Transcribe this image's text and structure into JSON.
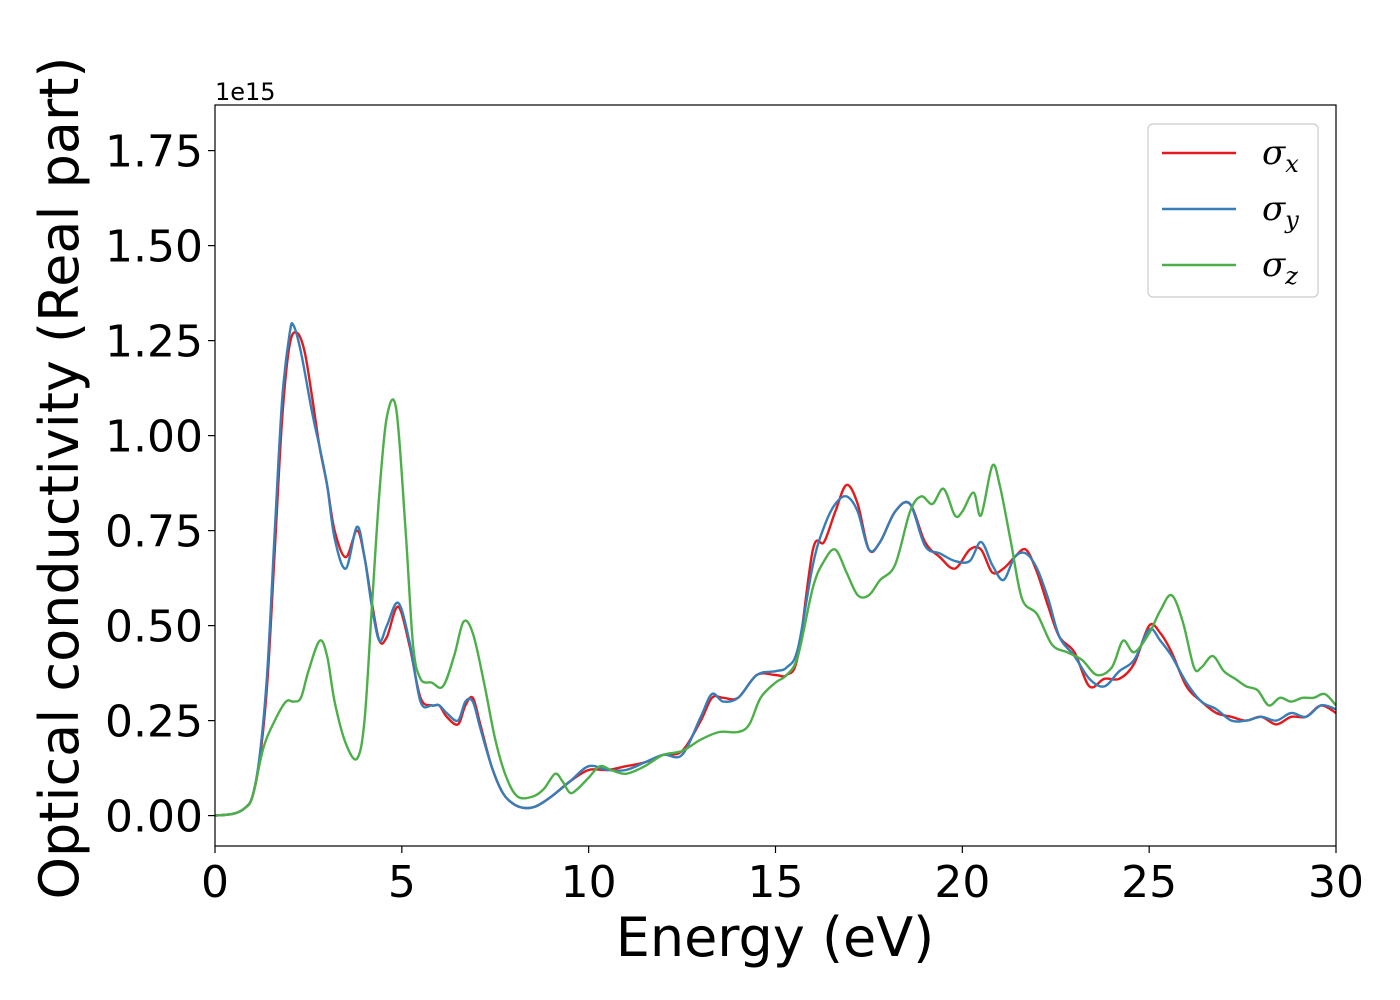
{
  "chart_data": {
    "type": "line",
    "xlabel": "Energy (eV)",
    "ylabel": "Optical conductivity (Real part)",
    "y_offset_text": "1e15",
    "y_scale_factor": 1000000000000000.0,
    "xlim": [
      0,
      30
    ],
    "ylim": [
      -0.08,
      1.87
    ],
    "x_ticks": [
      0,
      5,
      10,
      15,
      20,
      25,
      30
    ],
    "x_tick_labels": [
      "0",
      "5",
      "10",
      "15",
      "20",
      "25",
      "30"
    ],
    "y_ticks": [
      0,
      0.25,
      0.5,
      0.75,
      1.0,
      1.25,
      1.5,
      1.75
    ],
    "y_tick_labels": [
      "0.00",
      "0.25",
      "0.50",
      "0.75",
      "1.00",
      "1.25",
      "1.50",
      "1.75"
    ],
    "grid": false,
    "legend_position": "top-right",
    "series": [
      {
        "name": "σx",
        "base": "σ",
        "sub": "x",
        "color": "#e41a1c",
        "x": [
          0,
          0.5,
          0.8,
          1.0,
          1.2,
          1.4,
          1.6,
          1.8,
          2.0,
          2.2,
          2.4,
          2.6,
          2.8,
          3.0,
          3.2,
          3.5,
          3.8,
          4.0,
          4.2,
          4.4,
          4.6,
          4.9,
          5.2,
          5.5,
          5.8,
          6.0,
          6.2,
          6.5,
          6.7,
          6.9,
          7.1,
          7.4,
          7.7,
          8.0,
          8.3,
          8.6,
          9.0,
          9.5,
          10.0,
          10.5,
          11.0,
          11.5,
          12.0,
          12.5,
          13.0,
          13.3,
          13.6,
          14.0,
          14.5,
          15.0,
          15.3,
          15.6,
          16.0,
          16.3,
          16.6,
          16.9,
          17.2,
          17.5,
          17.8,
          18.2,
          18.6,
          19.0,
          19.4,
          19.8,
          20.2,
          20.5,
          20.8,
          21.1,
          21.4,
          21.7,
          22.0,
          22.3,
          22.6,
          23.0,
          23.4,
          23.8,
          24.2,
          24.6,
          25.0,
          25.3,
          25.6,
          26.0,
          26.4,
          26.8,
          27.2,
          27.6,
          28.0,
          28.4,
          28.8,
          29.2,
          29.6,
          30.0
        ],
        "y": [
          0.0,
          0.005,
          0.02,
          0.05,
          0.15,
          0.35,
          0.7,
          1.05,
          1.24,
          1.27,
          1.22,
          1.1,
          0.97,
          0.87,
          0.75,
          0.68,
          0.75,
          0.68,
          0.56,
          0.46,
          0.47,
          0.55,
          0.45,
          0.31,
          0.29,
          0.29,
          0.26,
          0.24,
          0.29,
          0.31,
          0.24,
          0.13,
          0.06,
          0.03,
          0.02,
          0.025,
          0.05,
          0.09,
          0.12,
          0.12,
          0.13,
          0.14,
          0.16,
          0.17,
          0.25,
          0.31,
          0.31,
          0.31,
          0.37,
          0.37,
          0.37,
          0.42,
          0.7,
          0.72,
          0.8,
          0.87,
          0.82,
          0.7,
          0.72,
          0.8,
          0.82,
          0.72,
          0.68,
          0.65,
          0.7,
          0.7,
          0.64,
          0.65,
          0.68,
          0.7,
          0.64,
          0.55,
          0.47,
          0.43,
          0.34,
          0.36,
          0.36,
          0.4,
          0.5,
          0.48,
          0.43,
          0.34,
          0.3,
          0.27,
          0.26,
          0.25,
          0.26,
          0.24,
          0.26,
          0.26,
          0.29,
          0.27
        ]
      },
      {
        "name": "σy",
        "base": "σ",
        "sub": "y",
        "color": "#377eb8",
        "x": [
          0,
          0.5,
          0.8,
          1.0,
          1.2,
          1.4,
          1.6,
          1.8,
          2.0,
          2.1,
          2.3,
          2.6,
          2.8,
          3.0,
          3.2,
          3.5,
          3.8,
          4.0,
          4.2,
          4.4,
          4.6,
          4.9,
          5.2,
          5.5,
          5.8,
          6.0,
          6.2,
          6.5,
          6.7,
          6.9,
          7.1,
          7.4,
          7.7,
          8.0,
          8.3,
          8.6,
          9.0,
          9.5,
          10.0,
          10.5,
          11.0,
          11.5,
          12.0,
          12.5,
          13.0,
          13.3,
          13.6,
          14.0,
          14.5,
          15.0,
          15.3,
          15.6,
          16.0,
          16.3,
          16.6,
          16.9,
          17.2,
          17.5,
          17.8,
          18.2,
          18.6,
          19.0,
          19.4,
          19.8,
          20.2,
          20.5,
          20.8,
          21.1,
          21.4,
          21.7,
          22.0,
          22.3,
          22.6,
          23.0,
          23.4,
          23.8,
          24.2,
          24.6,
          25.0,
          25.3,
          25.6,
          26.0,
          26.4,
          26.8,
          27.2,
          27.6,
          28.0,
          28.4,
          28.8,
          29.2,
          29.6,
          30.0
        ],
        "y": [
          0.0,
          0.005,
          0.02,
          0.05,
          0.16,
          0.38,
          0.75,
          1.1,
          1.27,
          1.29,
          1.22,
          1.06,
          0.97,
          0.87,
          0.73,
          0.65,
          0.76,
          0.68,
          0.55,
          0.46,
          0.5,
          0.56,
          0.46,
          0.3,
          0.29,
          0.29,
          0.27,
          0.25,
          0.3,
          0.3,
          0.23,
          0.13,
          0.06,
          0.03,
          0.02,
          0.025,
          0.05,
          0.09,
          0.13,
          0.12,
          0.12,
          0.14,
          0.16,
          0.16,
          0.26,
          0.32,
          0.3,
          0.31,
          0.37,
          0.38,
          0.39,
          0.44,
          0.66,
          0.76,
          0.82,
          0.84,
          0.8,
          0.7,
          0.72,
          0.8,
          0.82,
          0.71,
          0.69,
          0.67,
          0.67,
          0.72,
          0.66,
          0.62,
          0.68,
          0.69,
          0.65,
          0.57,
          0.47,
          0.42,
          0.36,
          0.34,
          0.38,
          0.41,
          0.49,
          0.46,
          0.42,
          0.35,
          0.3,
          0.28,
          0.25,
          0.25,
          0.26,
          0.25,
          0.27,
          0.26,
          0.29,
          0.28
        ]
      },
      {
        "name": "σz",
        "base": "σ",
        "sub": "z",
        "color": "#4daf4a",
        "x": [
          0,
          0.5,
          0.8,
          1.0,
          1.3,
          1.6,
          1.9,
          2.1,
          2.3,
          2.5,
          2.8,
          3.0,
          3.2,
          3.5,
          3.8,
          4.0,
          4.2,
          4.4,
          4.6,
          4.85,
          5.1,
          5.3,
          5.5,
          5.8,
          6.1,
          6.4,
          6.65,
          6.9,
          7.2,
          7.5,
          7.8,
          8.1,
          8.5,
          8.8,
          9.1,
          9.3,
          9.5,
          9.7,
          10.0,
          10.3,
          10.6,
          11.0,
          11.5,
          12.0,
          12.5,
          13.0,
          13.5,
          14.0,
          14.3,
          14.6,
          15.0,
          15.3,
          15.6,
          16.0,
          16.3,
          16.6,
          16.9,
          17.2,
          17.5,
          17.8,
          18.2,
          18.6,
          18.9,
          19.2,
          19.5,
          19.8,
          20.0,
          20.3,
          20.5,
          20.8,
          21.0,
          21.3,
          21.6,
          22.0,
          22.4,
          22.8,
          23.2,
          23.6,
          24.0,
          24.3,
          24.6,
          25.0,
          25.3,
          25.6,
          25.9,
          26.2,
          26.4,
          26.7,
          27.0,
          27.3,
          27.6,
          27.9,
          28.2,
          28.5,
          28.8,
          29.1,
          29.4,
          29.7,
          30.0
        ],
        "y": [
          0.0,
          0.005,
          0.02,
          0.05,
          0.18,
          0.25,
          0.3,
          0.3,
          0.31,
          0.38,
          0.46,
          0.42,
          0.3,
          0.19,
          0.15,
          0.25,
          0.55,
          0.85,
          1.05,
          1.07,
          0.75,
          0.45,
          0.36,
          0.35,
          0.34,
          0.42,
          0.51,
          0.48,
          0.35,
          0.2,
          0.1,
          0.05,
          0.05,
          0.07,
          0.11,
          0.09,
          0.06,
          0.07,
          0.1,
          0.13,
          0.12,
          0.11,
          0.13,
          0.16,
          0.17,
          0.2,
          0.22,
          0.22,
          0.24,
          0.31,
          0.35,
          0.37,
          0.42,
          0.6,
          0.67,
          0.7,
          0.64,
          0.58,
          0.58,
          0.62,
          0.66,
          0.8,
          0.84,
          0.82,
          0.86,
          0.79,
          0.8,
          0.85,
          0.79,
          0.92,
          0.87,
          0.72,
          0.57,
          0.53,
          0.45,
          0.43,
          0.41,
          0.37,
          0.39,
          0.46,
          0.43,
          0.48,
          0.54,
          0.58,
          0.51,
          0.39,
          0.39,
          0.42,
          0.38,
          0.36,
          0.34,
          0.33,
          0.29,
          0.31,
          0.3,
          0.31,
          0.31,
          0.32,
          0.29
        ]
      }
    ]
  }
}
